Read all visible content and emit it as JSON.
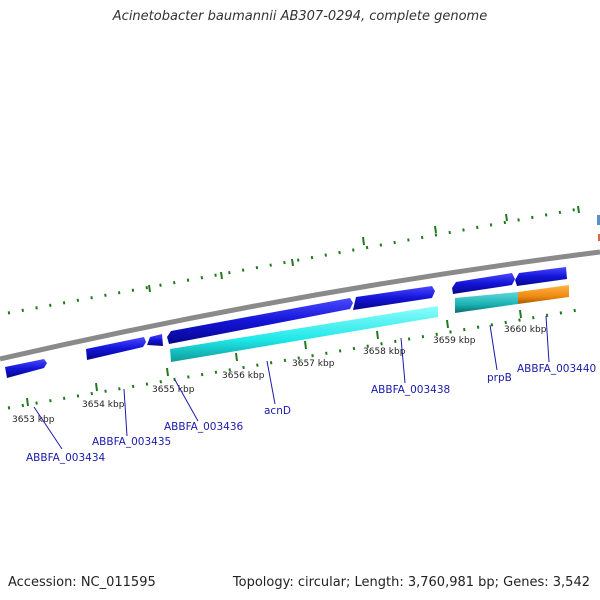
{
  "title": "Acinetobacter baumannii AB307-0294, complete genome",
  "footer": {
    "accession": "Accession: NC_011595",
    "summary": "Topology: circular; Length: 3,760,981 bp; Genes: 3,542"
  },
  "kbp_labels": [
    "3653 kbp",
    "3654 kbp",
    "3655 kbp",
    "3656 kbp",
    "3657 kbp",
    "3658 kbp",
    "3659 kbp",
    "3660 kbp"
  ],
  "gene_labels": [
    "ABBFA_003434",
    "ABBFA_003435",
    "ABBFA_003436",
    "acnD",
    "ABBFA_003438",
    "prpB",
    "ABBFA_003440"
  ],
  "colors": {
    "backbone": "#8a8a8a",
    "gene_blue": "#1414d8",
    "gene_cyan": "#1ee8e8",
    "gene_teal": "#19b2b2",
    "gene_orange": "#f08a10",
    "tick_green": "#1f7a1f",
    "label_blue": "#1a1aaa"
  }
}
